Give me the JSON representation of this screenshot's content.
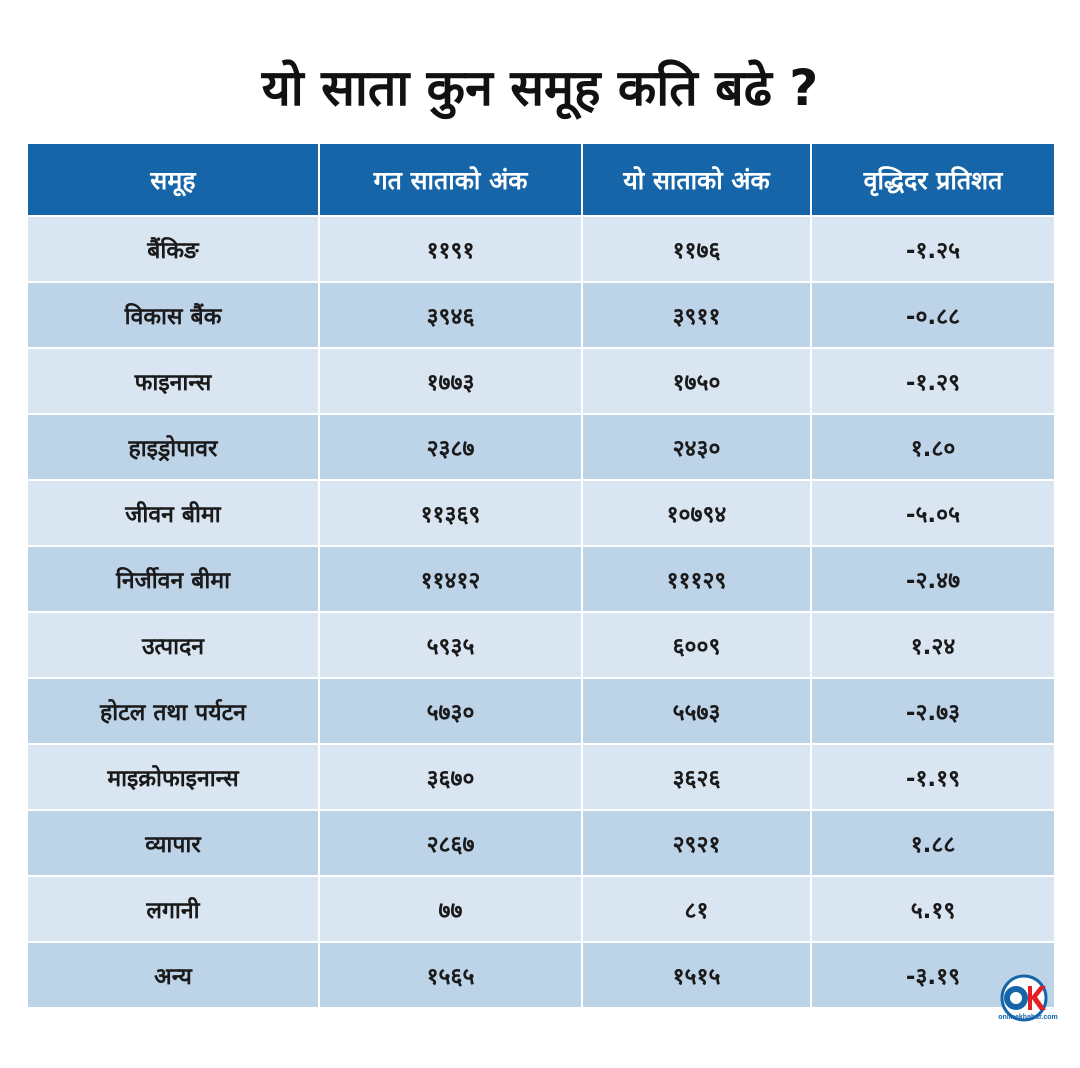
{
  "title": "यो साता कुन समूह कति बढे ?",
  "table": {
    "headers": [
      "समूह",
      "गत साताको अंक",
      "यो साताको अंक",
      "वृद्धिदर प्रतिशत"
    ],
    "rows": [
      {
        "group": "बैंकिङ",
        "last_week": "११९१",
        "this_week": "११७६",
        "growth": "-१.२५"
      },
      {
        "group": "विकास बैंक",
        "last_week": "३९४६",
        "this_week": "३९११",
        "growth": "-०.८८"
      },
      {
        "group": "फाइनान्स",
        "last_week": "१७७३",
        "this_week": "१७५०",
        "growth": "-१.२९"
      },
      {
        "group": "हाइड्रोपावर",
        "last_week": "२३८७",
        "this_week": "२४३०",
        "growth": "१.८०"
      },
      {
        "group": "जीवन बीमा",
        "last_week": "११३६९",
        "this_week": "१०७९४",
        "growth": "-५.०५"
      },
      {
        "group": "निर्जीवन बीमा",
        "last_week": "११४१२",
        "this_week": "१११२९",
        "growth": "-२.४७"
      },
      {
        "group": "उत्पादन",
        "last_week": "५९३५",
        "this_week": "६००९",
        "growth": "१.२४"
      },
      {
        "group": "होटल तथा पर्यटन",
        "last_week": "५७३०",
        "this_week": "५५७३",
        "growth": "-२.७३"
      },
      {
        "group": "माइक्रोफाइनान्स",
        "last_week": "३६७०",
        "this_week": "३६२६",
        "growth": "-१.१९"
      },
      {
        "group": "व्यापार",
        "last_week": "२८६७",
        "this_week": "२९२१",
        "growth": "१.८८"
      },
      {
        "group": "लगानी",
        "last_week": "७७",
        "this_week": "८१",
        "growth": "५.१९"
      },
      {
        "group": "अन्य",
        "last_week": "१५६५",
        "this_week": "१५१५",
        "growth": "-३.१९"
      }
    ]
  },
  "logo": {
    "mark": "OK",
    "text": "onlinekhabar.com",
    "colors": {
      "ring": "#1565a8",
      "accent": "#e31e24"
    }
  },
  "colors": {
    "header_bg": "#1565a8",
    "row_light": "#d9e5f1",
    "row_dark": "#bdd3e8"
  }
}
